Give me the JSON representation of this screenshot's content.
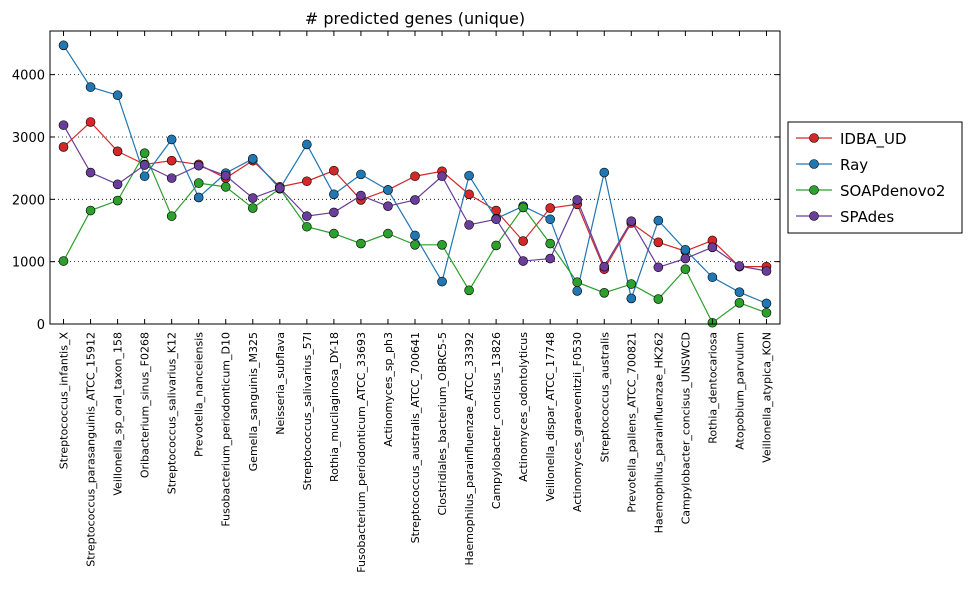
{
  "chart_data": {
    "type": "line",
    "title": "# predicted genes (unique)",
    "xlabel": "",
    "ylabel": "",
    "ylim": [
      0,
      4700
    ],
    "yticks": [
      0,
      1000,
      2000,
      3000,
      4000
    ],
    "grid": "horizontal-dotted",
    "legend_position": "right-outside",
    "categories": [
      "Streptococcus_infantis_X",
      "Streptococcus_parasanguinis_ATCC_15912",
      "Veillonella_sp_oral_taxon_158",
      "Oribacterium_sinus_F0268",
      "Streptococcus_salivarius_K12",
      "Prevotella_nanceiensis",
      "Fusobacterium_periodonticum_D10",
      "Gemella_sanguinis_M325",
      "Neisseria_subflava",
      "Streptococcus_salivarius_57I",
      "Rothia_mucilaginosa_DY-18",
      "Fusobacterium_periodonticum_ATCC_33693",
      "Actinomyces_sp_ph3",
      "Streptococcus_australis_ATCC_700641",
      "Clostridiales_bacterium_OBRC5-5",
      "Haemophilus_parainfluenzae_ATCC_33392",
      "Campylobacter_concisus_13826",
      "Actinomyces_odontolyticus",
      "Veillonella_dispar_ATCC_17748",
      "Actinomyces_graevenitzii_F0530",
      "Streptococcus_australis",
      "Prevotella_pallens_ATCC_700821",
      "Haemophilus_parainfluenzae_HK262",
      "Campylobacter_concisus_UNSWCD",
      "Rothia_dentocariosa",
      "Atopobium_parvulum",
      "Veillonella_atypica_KON"
    ],
    "series": [
      {
        "name": "IDBA_UD",
        "color": "#d62728",
        "values": [
          2840,
          3240,
          2770,
          2560,
          2620,
          2560,
          2340,
          2620,
          2200,
          2290,
          2460,
          1990,
          2150,
          2370,
          2450,
          2080,
          1820,
          1330,
          1860,
          1920,
          880,
          1620,
          1310,
          1170,
          1340,
          920,
          920
        ]
      },
      {
        "name": "Ray",
        "color": "#1f77b4",
        "values": [
          4470,
          3800,
          3670,
          2370,
          2960,
          2030,
          2420,
          2650,
          2170,
          2880,
          2080,
          2400,
          2150,
          1420,
          680,
          2380,
          1690,
          1890,
          1680,
          530,
          2430,
          410,
          1660,
          1190,
          750,
          510,
          330
        ]
      },
      {
        "name": "SOAPdenovo2",
        "color": "#2ca02c",
        "values": [
          1010,
          1820,
          1980,
          2740,
          1730,
          2260,
          2200,
          1860,
          2170,
          1560,
          1450,
          1290,
          1450,
          1270,
          1270,
          540,
          1260,
          1870,
          1290,
          670,
          500,
          640,
          400,
          880,
          20,
          340,
          180
        ]
      },
      {
        "name": "SPAdes",
        "color": "#6a3d9a",
        "values": [
          3190,
          2430,
          2240,
          2550,
          2340,
          2540,
          2380,
          2020,
          2180,
          1730,
          1790,
          2060,
          1890,
          1990,
          2370,
          1590,
          1680,
          1010,
          1050,
          1990,
          920,
          1650,
          910,
          1050,
          1230,
          930,
          850
        ]
      }
    ]
  }
}
